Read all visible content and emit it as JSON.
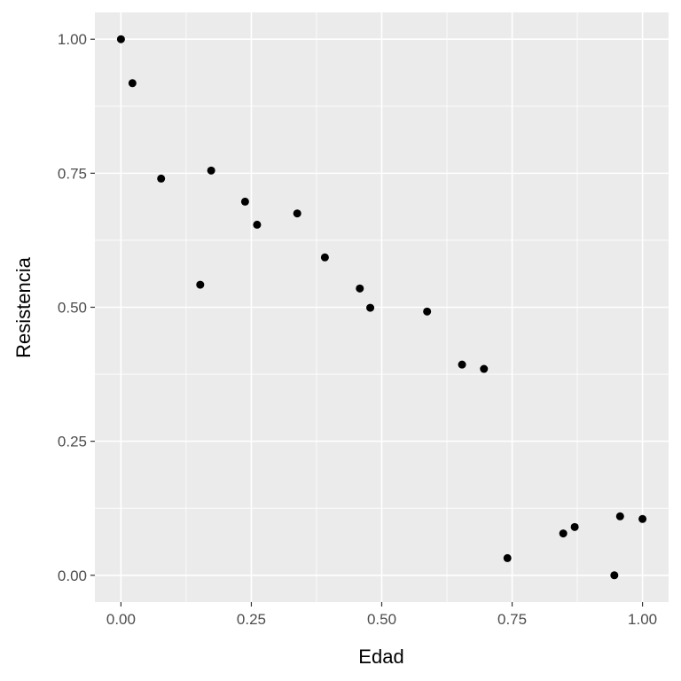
{
  "chart_data": {
    "type": "scatter",
    "xlabel": "Edad",
    "ylabel": "Resistencia",
    "xlim": [
      -0.05,
      1.05
    ],
    "ylim": [
      -0.05,
      1.05
    ],
    "x_ticks": [
      0,
      0.25,
      0.5,
      0.75,
      1
    ],
    "x_tick_labels": [
      "0.00",
      "0.25",
      "0.50",
      "0.75",
      "1.00"
    ],
    "y_ticks": [
      0,
      0.25,
      0.5,
      0.75,
      1
    ],
    "y_tick_labels": [
      "0.00",
      "0.25",
      "0.50",
      "0.75",
      "1.00"
    ],
    "grid": true,
    "colors": {
      "panel": "#ebebeb",
      "grid": "#ffffff",
      "point": "#000000",
      "tick_text": "#4d4d4d",
      "tick_mark": "#333333"
    },
    "points": [
      {
        "x": 0.0,
        "y": 1.0
      },
      {
        "x": 0.022,
        "y": 0.918
      },
      {
        "x": 0.077,
        "y": 0.74
      },
      {
        "x": 0.152,
        "y": 0.542
      },
      {
        "x": 0.173,
        "y": 0.755
      },
      {
        "x": 0.238,
        "y": 0.697
      },
      {
        "x": 0.261,
        "y": 0.654
      },
      {
        "x": 0.338,
        "y": 0.675
      },
      {
        "x": 0.391,
        "y": 0.593
      },
      {
        "x": 0.458,
        "y": 0.535
      },
      {
        "x": 0.478,
        "y": 0.499
      },
      {
        "x": 0.587,
        "y": 0.492
      },
      {
        "x": 0.654,
        "y": 0.393
      },
      {
        "x": 0.696,
        "y": 0.385
      },
      {
        "x": 0.741,
        "y": 0.032
      },
      {
        "x": 0.848,
        "y": 0.078
      },
      {
        "x": 0.87,
        "y": 0.09
      },
      {
        "x": 0.946,
        "y": 0.0
      },
      {
        "x": 0.957,
        "y": 0.11
      },
      {
        "x": 1.0,
        "y": 0.105
      }
    ]
  }
}
